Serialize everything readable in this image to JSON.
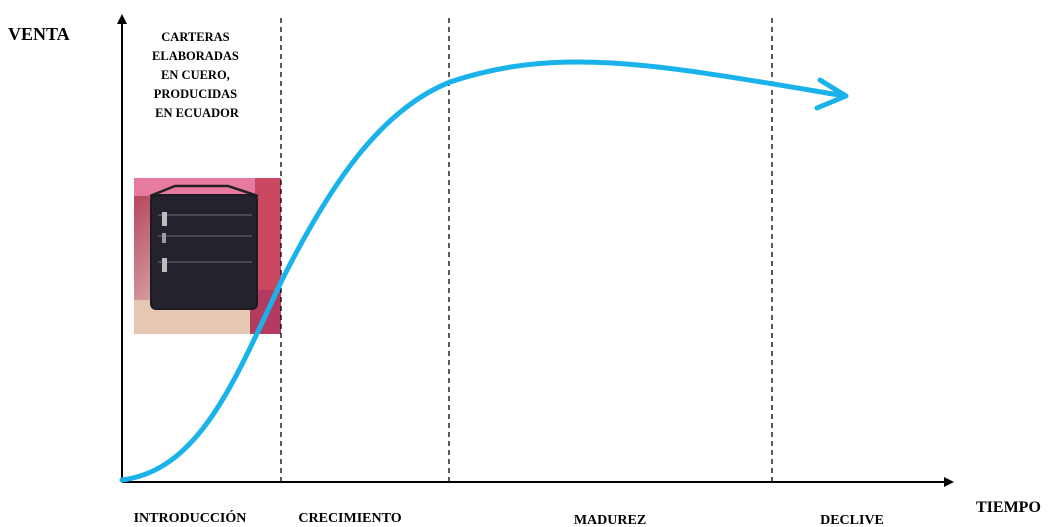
{
  "diagram": {
    "y_axis_label": "VENTA",
    "x_axis_label": "TIEMPO",
    "note_lines": [
      "CARTERAS",
      "ELABORADAS",
      "EN CUERO,",
      "PRODUCIDAS",
      "EN ECUADOR"
    ],
    "stages": [
      "INTRODUCCIÓN",
      "CRECIMIENTO",
      "MADUREZ",
      "DECLIVE"
    ],
    "image": {
      "subject": "black-leather-handbag-photo"
    },
    "colors": {
      "curve": "#1ab2ea",
      "axes": "#000000",
      "dividers": "#000000"
    }
  }
}
